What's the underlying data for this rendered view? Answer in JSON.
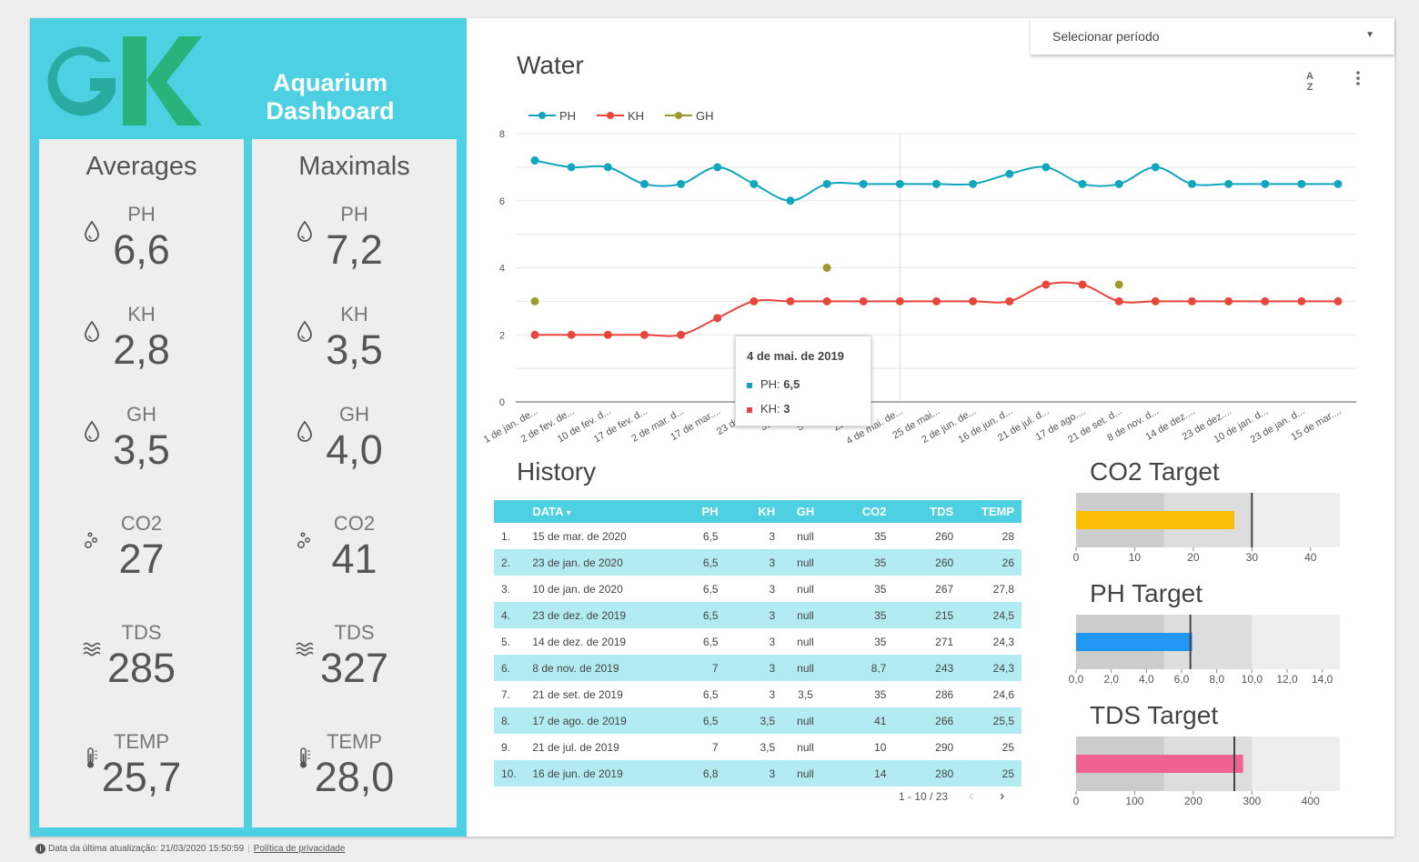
{
  "header": {
    "title": "Aquarium Dashboard",
    "logo": "GK"
  },
  "period_select": {
    "label": "Selecionar período"
  },
  "averages": {
    "title": "Averages",
    "items": [
      {
        "label": "PH",
        "value": "6,6",
        "icon": "drop-icon"
      },
      {
        "label": "KH",
        "value": "2,8",
        "icon": "drop-icon"
      },
      {
        "label": "GH",
        "value": "3,5",
        "icon": "drop-icon"
      },
      {
        "label": "CO2",
        "value": "27",
        "icon": "bubbles-icon"
      },
      {
        "label": "TDS",
        "value": "285",
        "icon": "waves-icon"
      },
      {
        "label": "TEMP",
        "value": "25,7",
        "icon": "thermometer-icon"
      }
    ]
  },
  "maximals": {
    "title": "Maximals",
    "items": [
      {
        "label": "PH",
        "value": "7,2",
        "icon": "drop-icon"
      },
      {
        "label": "KH",
        "value": "3,5",
        "icon": "drop-icon"
      },
      {
        "label": "GH",
        "value": "4,0",
        "icon": "drop-icon"
      },
      {
        "label": "CO2",
        "value": "41",
        "icon": "bubbles-icon"
      },
      {
        "label": "TDS",
        "value": "327",
        "icon": "waves-icon"
      },
      {
        "label": "TEMP",
        "value": "28,0",
        "icon": "thermometer-icon"
      }
    ]
  },
  "water": {
    "title": "Water",
    "tooltip": {
      "date": "4 de mai. de 2019",
      "ph_label": "PH: ",
      "ph_value": "6,5",
      "kh_label": "KH: ",
      "kh_value": "3"
    }
  },
  "history": {
    "title": "History",
    "columns": [
      "DATA",
      "PH",
      "KH",
      "GH",
      "CO2",
      "TDS",
      "TEMP"
    ],
    "sort_indicator": "▾",
    "rows": [
      [
        "1.",
        "15 de mar. de 2020",
        "6,5",
        "3",
        "null",
        "35",
        "260",
        "28"
      ],
      [
        "2.",
        "23 de jan. de 2020",
        "6,5",
        "3",
        "null",
        "35",
        "260",
        "26"
      ],
      [
        "3.",
        "10 de jan. de 2020",
        "6,5",
        "3",
        "null",
        "35",
        "267",
        "27,8"
      ],
      [
        "4.",
        "23 de dez. de 2019",
        "6,5",
        "3",
        "null",
        "35",
        "215",
        "24,5"
      ],
      [
        "5.",
        "14 de dez. de 2019",
        "6,5",
        "3",
        "null",
        "35",
        "271",
        "24,3"
      ],
      [
        "6.",
        "8 de nov. de 2019",
        "7",
        "3",
        "null",
        "8,7",
        "243",
        "24,3"
      ],
      [
        "7.",
        "21 de set. de 2019",
        "6,5",
        "3",
        "3,5",
        "35",
        "286",
        "24,6"
      ],
      [
        "8.",
        "17 de ago. de 2019",
        "6,5",
        "3,5",
        "null",
        "41",
        "266",
        "25,5"
      ],
      [
        "9.",
        "21 de jul. de 2019",
        "7",
        "3,5",
        "null",
        "10",
        "290",
        "25"
      ],
      [
        "10.",
        "16 de jun. de 2019",
        "6,8",
        "3",
        "null",
        "14",
        "280",
        "25"
      ]
    ],
    "pager": "1 - 10 / 23",
    "prev": "‹",
    "next": "›"
  },
  "targets": {
    "co2": {
      "title": "CO2 Target"
    },
    "ph": {
      "title": "PH Target"
    },
    "tds": {
      "title": "TDS Target"
    }
  },
  "footer": {
    "updated": "Data da última atualização: 21/03/2020 15:50:59",
    "privacy": "Política de privacidade"
  },
  "chart_data": [
    {
      "type": "line",
      "title": "Water",
      "x": [
        "1 de jan. de...",
        "2 de fev. de...",
        "10 de fev. d...",
        "17 de fev. d...",
        "2 de mar. d...",
        "17 de mar....",
        "23 de m...",
        "31 de ...",
        "5 de a...",
        "22 de ...",
        "4 de mai. de...",
        "25 de mai...",
        "2 de jun. de...",
        "16 de jun. d...",
        "21 de jul. d...",
        "17 de ago....",
        "21 de set. d...",
        "8 de nov. d...",
        "14 de dez....",
        "23 de dez....",
        "10 de jan. d...",
        "23 de jan. d...",
        "15 de mar...."
      ],
      "ylim": [
        0,
        8
      ],
      "yticks": [
        0,
        2,
        4,
        6,
        8
      ],
      "grid": true,
      "legend": "top-left",
      "series": [
        {
          "name": "PH",
          "color": "#12a5bf",
          "values": [
            7.2,
            7.0,
            7.0,
            6.5,
            6.5,
            7.0,
            6.5,
            6.0,
            6.5,
            6.5,
            6.5,
            6.5,
            6.5,
            6.8,
            7.0,
            6.5,
            6.5,
            7.0,
            6.5,
            6.5,
            6.5,
            6.5,
            6.5
          ]
        },
        {
          "name": "KH",
          "color": "#e8453c",
          "values": [
            2,
            2,
            2,
            2,
            2,
            2.5,
            3,
            3,
            3,
            3,
            3,
            3,
            3,
            3,
            3.5,
            3.5,
            3,
            3,
            3,
            3,
            3,
            3,
            3
          ]
        },
        {
          "name": "GH",
          "color": "#9c9a2c",
          "values": [
            3,
            null,
            null,
            null,
            null,
            null,
            null,
            null,
            4,
            null,
            null,
            null,
            null,
            null,
            null,
            null,
            3.5,
            null,
            null,
            null,
            null,
            null,
            null
          ]
        }
      ]
    },
    {
      "type": "bar",
      "title": "CO2 Target",
      "value": 27,
      "target": 30,
      "bands": [
        15,
        30,
        45
      ],
      "ticks": [
        0,
        10,
        20,
        30,
        40
      ],
      "tick_labels": [
        "0",
        "10",
        "20",
        "30",
        "40"
      ],
      "range": [
        0,
        45
      ],
      "color": "#fbbc04"
    },
    {
      "type": "bar",
      "title": "PH Target",
      "value": 6.6,
      "target": 6.5,
      "bands": [
        5,
        10,
        15
      ],
      "ticks": [
        0,
        2,
        4,
        6,
        8,
        10,
        12,
        14
      ],
      "tick_labels": [
        "0,0",
        "2,0",
        "4,0",
        "6,0",
        "8,0",
        "10,0",
        "12,0",
        "14,0"
      ],
      "range": [
        0,
        15
      ],
      "color": "#2196f3"
    },
    {
      "type": "bar",
      "title": "TDS Target",
      "value": 285,
      "target": 270,
      "bands": [
        150,
        300,
        450
      ],
      "ticks": [
        0,
        100,
        200,
        300,
        400
      ],
      "tick_labels": [
        "0",
        "100",
        "200",
        "300",
        "400"
      ],
      "range": [
        0,
        450
      ],
      "color": "#f06292"
    }
  ]
}
